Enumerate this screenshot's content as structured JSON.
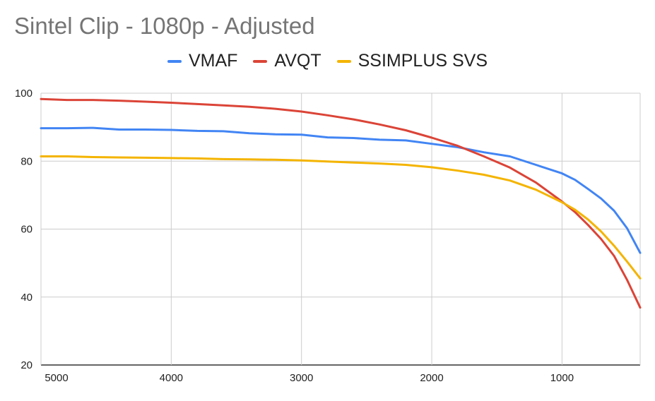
{
  "chart_data": {
    "type": "line",
    "title": "Sintel Clip - 1080p - Adjusted",
    "xlabel": "",
    "ylabel": "",
    "x_reversed": true,
    "xlim": [
      5000,
      400
    ],
    "ylim": [
      20,
      100
    ],
    "x_ticks": [
      5000,
      4000,
      3000,
      2000,
      1000
    ],
    "y_ticks": [
      20,
      40,
      60,
      80,
      100
    ],
    "grid": true,
    "legend": "top-center",
    "x": [
      5000,
      4800,
      4600,
      4400,
      4200,
      4000,
      3800,
      3600,
      3400,
      3200,
      3000,
      2800,
      2600,
      2400,
      2200,
      2000,
      1800,
      1600,
      1400,
      1200,
      1000,
      900,
      800,
      700,
      600,
      500,
      400
    ],
    "series": [
      {
        "name": "VMAF",
        "color": "#4285f4",
        "values": [
          89.7,
          89.7,
          89.8,
          89.3,
          89.3,
          89.2,
          88.9,
          88.8,
          88.2,
          87.9,
          87.8,
          87.0,
          86.8,
          86.3,
          86.1,
          85.1,
          84.1,
          82.6,
          81.4,
          78.9,
          76.4,
          74.5,
          71.8,
          69.0,
          65.4,
          60.2,
          53.0
        ]
      },
      {
        "name": "AVQT",
        "color": "#db4437",
        "values": [
          98.3,
          98.0,
          98.0,
          97.8,
          97.5,
          97.2,
          96.8,
          96.4,
          96.0,
          95.4,
          94.6,
          93.5,
          92.3,
          90.8,
          89.1,
          86.9,
          84.5,
          81.4,
          78.1,
          73.7,
          68.1,
          65.0,
          61.2,
          57.1,
          52.1,
          45.0,
          36.9
        ]
      },
      {
        "name": "SSIMPLUS SVS",
        "color": "#f4b400",
        "values": [
          81.4,
          81.4,
          81.2,
          81.1,
          81.0,
          80.9,
          80.8,
          80.6,
          80.5,
          80.4,
          80.2,
          79.9,
          79.6,
          79.3,
          78.9,
          78.2,
          77.2,
          76.0,
          74.3,
          71.6,
          67.9,
          65.7,
          62.8,
          59.3,
          55.1,
          50.4,
          45.5
        ]
      }
    ]
  }
}
